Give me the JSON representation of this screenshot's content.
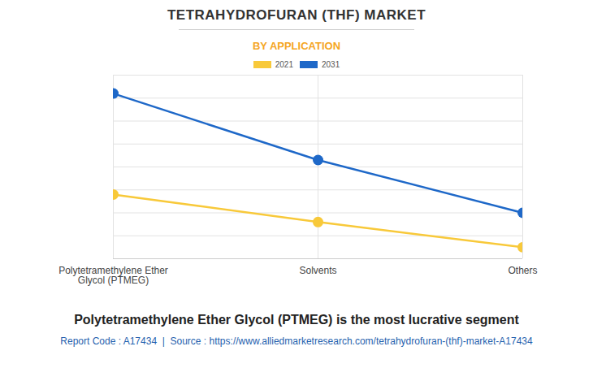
{
  "chart_data": {
    "type": "line",
    "title": "TETRAHYDROFURAN (THF) MARKET",
    "subtitle": "BY APPLICATION",
    "caption": "Polytetramethylene Ether Glycol (PTMEG) is the most lucrative segment",
    "footer": "Report Code : A17434  |  Source : https://www.alliedmarketresearch.com/tetrahydrofuran-(thf)-market-A17434",
    "categories": [
      "Polytetramethylene Ether Glycol (PTMEG)",
      "Solvents",
      "Others"
    ],
    "series": [
      {
        "name": "2021",
        "color": "#f8c93a",
        "values": [
          2.8,
          1.6,
          0.5
        ]
      },
      {
        "name": "2031",
        "color": "#1e68c8",
        "values": [
          7.2,
          4.3,
          2.0
        ]
      }
    ],
    "ylim": [
      0,
      8
    ],
    "yticks": [
      0,
      1,
      2,
      3,
      4,
      5,
      6,
      7,
      8
    ],
    "grid": true,
    "legend": "top",
    "tick_labels": "x",
    "marker": "circle"
  }
}
